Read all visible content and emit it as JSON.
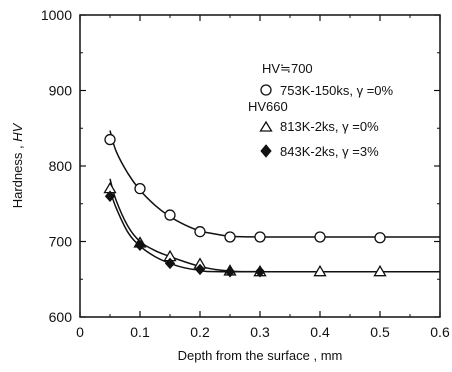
{
  "chart_data": {
    "type": "scatter",
    "xlabel": "Depth from the surface , mm",
    "ylabel_main": "Hardness , ",
    "ylabel_italic": "HV",
    "xlim": [
      0,
      0.6
    ],
    "ylim": [
      600,
      1000
    ],
    "x_ticks": [
      0,
      0.1,
      0.2,
      0.3,
      0.4,
      0.5,
      0.6
    ],
    "x_tick_labels": [
      "0",
      "0.1",
      "0.2",
      "0.3",
      "0.4",
      "0.5",
      "0.6"
    ],
    "y_ticks": [
      600,
      700,
      800,
      900,
      1000
    ],
    "y_tick_labels": [
      "600",
      "700",
      "800",
      "900",
      "1000"
    ],
    "grid": false,
    "legend": {
      "group1_heading": "HV≒700",
      "group2_heading": "HV660"
    },
    "series": [
      {
        "name": "753K-150ks, γ =0%",
        "marker": "circle-open",
        "points": [
          [
            0.05,
            835
          ],
          [
            0.1,
            770
          ],
          [
            0.15,
            735
          ],
          [
            0.2,
            713
          ],
          [
            0.25,
            706
          ],
          [
            0.3,
            706
          ],
          [
            0.4,
            706
          ],
          [
            0.5,
            705
          ]
        ],
        "curve": [
          [
            0.05,
            847
          ],
          [
            0.06,
            820
          ],
          [
            0.08,
            790
          ],
          [
            0.1,
            768
          ],
          [
            0.125,
            748
          ],
          [
            0.15,
            733
          ],
          [
            0.175,
            722
          ],
          [
            0.2,
            714
          ],
          [
            0.225,
            710
          ],
          [
            0.25,
            707
          ],
          [
            0.3,
            706
          ],
          [
            0.4,
            706
          ],
          [
            0.5,
            706
          ],
          [
            0.6,
            706
          ]
        ]
      },
      {
        "name": "813K-2ks, γ =0%",
        "marker": "triangle-open",
        "points": [
          [
            0.05,
            770
          ],
          [
            0.1,
            698
          ],
          [
            0.15,
            680
          ],
          [
            0.2,
            670
          ],
          [
            0.25,
            661
          ],
          [
            0.3,
            660
          ],
          [
            0.4,
            660
          ],
          [
            0.5,
            660
          ]
        ],
        "curve": [
          [
            0.05,
            783
          ],
          [
            0.06,
            755
          ],
          [
            0.08,
            720
          ],
          [
            0.1,
            700
          ],
          [
            0.125,
            688
          ],
          [
            0.15,
            680
          ],
          [
            0.175,
            673
          ],
          [
            0.2,
            667
          ],
          [
            0.225,
            663
          ],
          [
            0.25,
            661
          ],
          [
            0.3,
            660
          ],
          [
            0.6,
            660
          ]
        ]
      },
      {
        "name": "843K-2ks, γ =3%",
        "marker": "diamond-filled",
        "points": [
          [
            0.05,
            760
          ],
          [
            0.1,
            695
          ],
          [
            0.15,
            671
          ],
          [
            0.2,
            663
          ],
          [
            0.25,
            660
          ],
          [
            0.3,
            660
          ]
        ],
        "curve": [
          [
            0.05,
            768
          ],
          [
            0.06,
            745
          ],
          [
            0.08,
            712
          ],
          [
            0.1,
            694
          ],
          [
            0.125,
            680
          ],
          [
            0.15,
            671
          ],
          [
            0.175,
            665
          ],
          [
            0.2,
            662
          ],
          [
            0.25,
            660
          ],
          [
            0.6,
            660
          ]
        ]
      }
    ]
  }
}
